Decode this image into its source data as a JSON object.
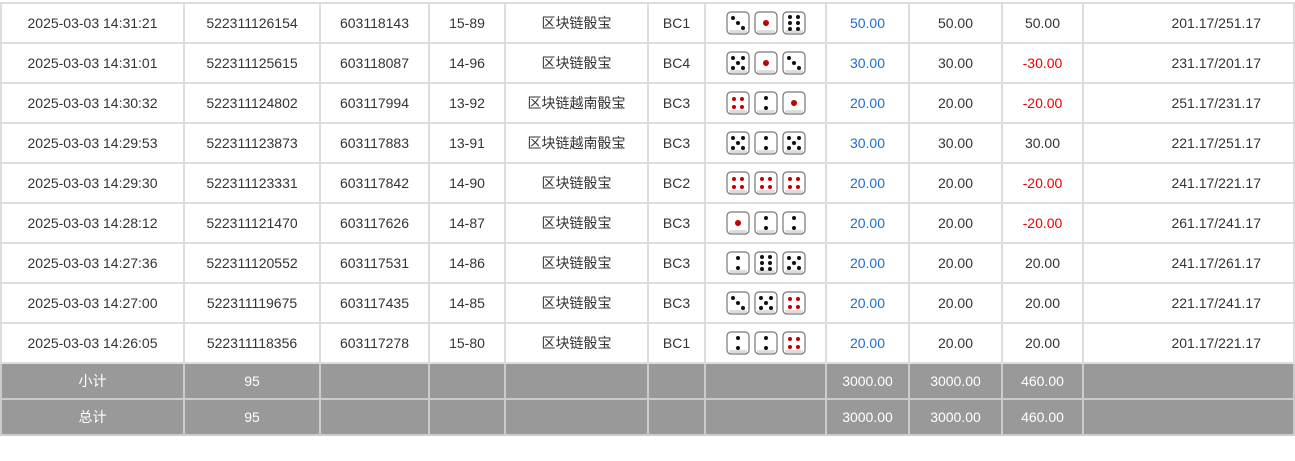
{
  "rows": [
    {
      "time": "2025-03-03 14:31:21",
      "order": "522311126154",
      "issue": "603118143",
      "table": "15-89",
      "game": "区块链骰宝",
      "bet": "BC1",
      "dice": [
        3,
        1,
        6
      ],
      "amount": "50.00",
      "valid": "50.00",
      "win": "50.00",
      "win_color": "normal",
      "balance": "201.17/251.17"
    },
    {
      "time": "2025-03-03 14:31:01",
      "order": "522311125615",
      "issue": "603118087",
      "table": "14-96",
      "game": "区块链骰宝",
      "bet": "BC4",
      "dice": [
        5,
        1,
        3
      ],
      "amount": "30.00",
      "valid": "30.00",
      "win": "-30.00",
      "win_color": "red",
      "balance": "231.17/201.17"
    },
    {
      "time": "2025-03-03 14:30:32",
      "order": "522311124802",
      "issue": "603117994",
      "table": "13-92",
      "game": "区块链越南骰宝",
      "bet": "BC3",
      "dice": [
        4,
        2,
        1
      ],
      "amount": "20.00",
      "valid": "20.00",
      "win": "-20.00",
      "win_color": "red",
      "balance": "251.17/231.17"
    },
    {
      "time": "2025-03-03 14:29:53",
      "order": "522311123873",
      "issue": "603117883",
      "table": "13-91",
      "game": "区块链越南骰宝",
      "bet": "BC3",
      "dice": [
        5,
        2,
        5
      ],
      "amount": "30.00",
      "valid": "30.00",
      "win": "30.00",
      "win_color": "normal",
      "balance": "221.17/251.17"
    },
    {
      "time": "2025-03-03 14:29:30",
      "order": "522311123331",
      "issue": "603117842",
      "table": "14-90",
      "game": "区块链骰宝",
      "bet": "BC2",
      "dice": [
        4,
        4,
        4
      ],
      "amount": "20.00",
      "valid": "20.00",
      "win": "-20.00",
      "win_color": "red",
      "balance": "241.17/221.17"
    },
    {
      "time": "2025-03-03 14:28:12",
      "order": "522311121470",
      "issue": "603117626",
      "table": "14-87",
      "game": "区块链骰宝",
      "bet": "BC3",
      "dice": [
        1,
        2,
        2
      ],
      "amount": "20.00",
      "valid": "20.00",
      "win": "-20.00",
      "win_color": "red",
      "balance": "261.17/241.17"
    },
    {
      "time": "2025-03-03 14:27:36",
      "order": "522311120552",
      "issue": "603117531",
      "table": "14-86",
      "game": "区块链骰宝",
      "bet": "BC3",
      "dice": [
        2,
        6,
        5
      ],
      "amount": "20.00",
      "valid": "20.00",
      "win": "20.00",
      "win_color": "normal",
      "balance": "241.17/261.17"
    },
    {
      "time": "2025-03-03 14:27:00",
      "order": "522311119675",
      "issue": "603117435",
      "table": "14-85",
      "game": "区块链骰宝",
      "bet": "BC3",
      "dice": [
        3,
        5,
        4
      ],
      "amount": "20.00",
      "valid": "20.00",
      "win": "20.00",
      "win_color": "normal",
      "balance": "221.17/241.17"
    },
    {
      "time": "2025-03-03 14:26:05",
      "order": "522311118356",
      "issue": "603117278",
      "table": "15-80",
      "game": "区块链骰宝",
      "bet": "BC1",
      "dice": [
        2,
        2,
        4
      ],
      "amount": "20.00",
      "valid": "20.00",
      "win": "20.00",
      "win_color": "normal",
      "balance": "201.17/221.17"
    }
  ],
  "subtotal": {
    "label": "小计",
    "count": "95",
    "amount": "3000.00",
    "valid": "3000.00",
    "win": "460.00"
  },
  "total": {
    "label": "总计",
    "count": "95",
    "amount": "3000.00",
    "valid": "3000.00",
    "win": "460.00"
  },
  "colors": {
    "blue": "#1a6fd6",
    "red": "#e00000",
    "pip_red": "#c00000",
    "summary_bg": "#999999"
  }
}
